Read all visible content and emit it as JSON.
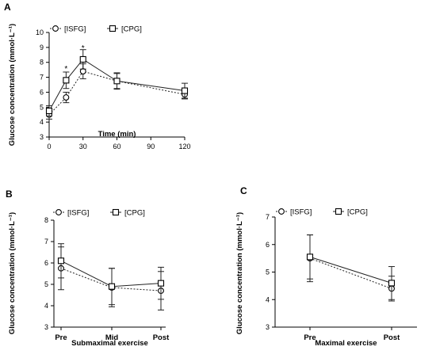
{
  "chart_data": [
    {
      "panel": "A",
      "type": "line",
      "xlabel": "Time (min)",
      "ylabel": "Glucose concentration (mmol·L⁻¹)",
      "x_ticks": [
        0,
        30,
        60,
        90,
        120
      ],
      "xlim": [
        0,
        120
      ],
      "y_ticks": [
        3,
        4,
        5,
        6,
        7,
        8,
        9,
        10
      ],
      "ylim": [
        3,
        10
      ],
      "x": [
        0,
        15,
        30,
        60,
        120
      ],
      "legend_placement": "top-left",
      "grid": false,
      "series": [
        {
          "name": "[ISFG]",
          "marker": "circle",
          "dashed": true,
          "values": [
            4.5,
            5.65,
            7.4,
            6.75,
            5.85
          ],
          "errors": [
            0.3,
            0.35,
            0.5,
            0.5,
            0.3
          ]
        },
        {
          "name": "[CPG]",
          "marker": "square",
          "dashed": false,
          "values": [
            4.75,
            6.8,
            8.2,
            6.75,
            6.1
          ],
          "errors": [
            0.35,
            0.55,
            0.65,
            0.55,
            0.5
          ]
        }
      ],
      "annotations": [
        {
          "text": "*",
          "x": 15,
          "y": 7.55
        },
        {
          "text": "*",
          "x": 30,
          "y": 8.95
        }
      ]
    },
    {
      "panel": "B",
      "type": "line",
      "xlabel": "Submaximal exercise",
      "ylabel": "Glucose concentration (mmol·L⁻¹)",
      "categories": [
        "Pre",
        "Mid",
        "Post"
      ],
      "y_ticks": [
        3,
        4,
        5,
        6,
        7,
        8
      ],
      "ylim": [
        3,
        8
      ],
      "legend_placement": "top-left",
      "grid": false,
      "series": [
        {
          "name": "[ISFG]",
          "marker": "circle",
          "dashed": true,
          "values": [
            5.75,
            4.85,
            4.7
          ],
          "errors": [
            1.0,
            0.9,
            0.9
          ]
        },
        {
          "name": "[CPG]",
          "marker": "square",
          "dashed": false,
          "values": [
            6.1,
            4.9,
            5.05
          ],
          "errors": [
            0.8,
            0.85,
            0.75
          ]
        }
      ]
    },
    {
      "panel": "C",
      "type": "line",
      "xlabel": "Maximal exercise",
      "ylabel": "Glucose concentration (mmol·L⁻¹)",
      "categories": [
        "Pre",
        "Post"
      ],
      "y_ticks": [
        3,
        4,
        5,
        6,
        7
      ],
      "ylim": [
        3,
        7
      ],
      "legend_placement": "top-left",
      "grid": false,
      "series": [
        {
          "name": "[ISFG]",
          "marker": "circle",
          "dashed": true,
          "values": [
            5.5,
            4.4
          ],
          "errors": [
            0.85,
            0.45
          ]
        },
        {
          "name": "[CPG]",
          "marker": "square",
          "dashed": false,
          "values": [
            5.55,
            4.6
          ],
          "errors": [
            0.8,
            0.6
          ]
        }
      ]
    }
  ]
}
